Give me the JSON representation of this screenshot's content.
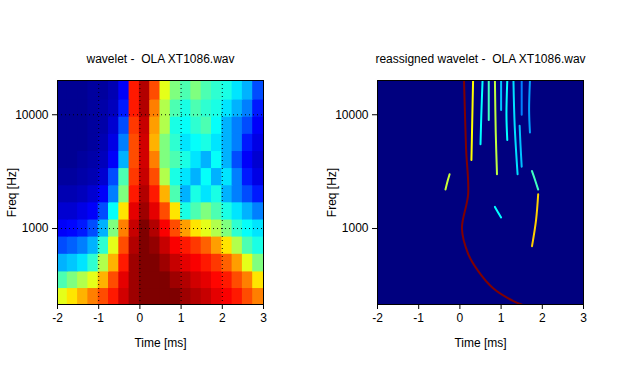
{
  "chart_data": [
    {
      "type": "heatmap",
      "title": "wavelet -  OLA XT1086.wav",
      "x_label": "Time [ms]",
      "y_label": "Freq [Hz]",
      "log": "y",
      "grid": true,
      "xlim": [
        -2,
        3
      ],
      "xticks": [
        -2,
        -1,
        0,
        1,
        2,
        3
      ],
      "ylim": [
        215,
        20000
      ],
      "yticks": [
        1000,
        10000
      ],
      "zlim": [
        0,
        1
      ],
      "x_edges": [
        -2,
        -1.75,
        -1.5,
        -1.25,
        -1,
        -0.75,
        -0.5,
        -0.25,
        0,
        0.25,
        0.5,
        0.75,
        1,
        1.25,
        1.5,
        1.75,
        2,
        2.25,
        2.5,
        2.75,
        3
      ],
      "y_edges": [
        215,
        300,
        420,
        600,
        850,
        1200,
        1700,
        2400,
        3400,
        4800,
        6800,
        9600,
        13600,
        20000
      ],
      "cells": [
        [
          0.6,
          0.65,
          0.7,
          0.75,
          0.8,
          0.85,
          0.92,
          0.97,
          1,
          1,
          1,
          1,
          0.97,
          0.95,
          0.93,
          0.9,
          0.88,
          0.85,
          0.8,
          0.75
        ],
        [
          0.45,
          0.5,
          0.55,
          0.6,
          0.7,
          0.8,
          0.9,
          0.97,
          1,
          1,
          1,
          0.97,
          0.95,
          0.92,
          0.9,
          0.87,
          0.85,
          0.8,
          0.75,
          0.65
        ],
        [
          0.3,
          0.32,
          0.35,
          0.42,
          0.55,
          0.7,
          0.85,
          0.97,
          1,
          1,
          0.97,
          0.93,
          0.9,
          0.88,
          0.85,
          0.82,
          0.78,
          0.72,
          0.6,
          0.5
        ],
        [
          0.2,
          0.22,
          0.25,
          0.3,
          0.42,
          0.6,
          0.8,
          0.95,
          1,
          0.98,
          0.93,
          0.88,
          0.85,
          0.82,
          0.78,
          0.72,
          0.65,
          0.55,
          0.45,
          0.4
        ],
        [
          0.12,
          0.13,
          0.15,
          0.2,
          0.3,
          0.5,
          0.75,
          0.93,
          1,
          0.95,
          0.88,
          0.8,
          0.72,
          0.65,
          0.6,
          0.55,
          0.5,
          0.42,
          0.38,
          0.35
        ],
        [
          0.08,
          0.08,
          0.1,
          0.12,
          0.2,
          0.38,
          0.65,
          0.9,
          0.97,
          0.9,
          0.8,
          0.65,
          0.4,
          0.45,
          0.5,
          0.45,
          0.4,
          0.35,
          0.3,
          0.25
        ],
        [
          0.05,
          0.05,
          0.06,
          0.08,
          0.12,
          0.25,
          0.5,
          0.85,
          0.95,
          0.85,
          0.7,
          0.45,
          0.3,
          0.4,
          0.35,
          0.4,
          0.3,
          0.25,
          0.2,
          0.15
        ],
        [
          0.03,
          0.03,
          0.04,
          0.05,
          0.08,
          0.2,
          0.45,
          0.82,
          0.93,
          0.8,
          0.55,
          0.4,
          0.35,
          0.3,
          0.38,
          0.3,
          0.35,
          0.25,
          0.15,
          0.1
        ],
        [
          0.02,
          0.02,
          0.03,
          0.04,
          0.06,
          0.12,
          0.3,
          0.8,
          0.92,
          0.75,
          0.5,
          0.45,
          0.4,
          0.35,
          0.3,
          0.38,
          0.3,
          0.2,
          0.12,
          0.08
        ],
        [
          0.02,
          0.02,
          0.02,
          0.03,
          0.05,
          0.1,
          0.25,
          0.8,
          0.92,
          0.7,
          0.5,
          0.42,
          0.35,
          0.38,
          0.4,
          0.35,
          0.3,
          0.25,
          0.15,
          0.1
        ],
        [
          0.02,
          0.02,
          0.02,
          0.03,
          0.04,
          0.08,
          0.2,
          0.82,
          0.93,
          0.72,
          0.55,
          0.4,
          0.38,
          0.42,
          0.45,
          0.38,
          0.3,
          0.25,
          0.2,
          0.12
        ],
        [
          0.02,
          0.02,
          0.02,
          0.03,
          0.04,
          0.06,
          0.15,
          0.85,
          0.95,
          0.75,
          0.55,
          0.45,
          0.4,
          0.45,
          0.42,
          0.4,
          0.35,
          0.3,
          0.25,
          0.15
        ],
        [
          0.02,
          0.02,
          0.02,
          0.03,
          0.03,
          0.05,
          0.12,
          0.85,
          0.95,
          0.8,
          0.6,
          0.5,
          0.45,
          0.5,
          0.45,
          0.42,
          0.4,
          0.35,
          0.3,
          0.2
        ]
      ]
    },
    {
      "type": "line",
      "title": "reassigned wavelet -  OLA XT1086.wav",
      "x_label": "Time [ms]",
      "y_label": "Freq [Hz]",
      "log": "y",
      "grid": false,
      "xlim": [
        -2,
        3
      ],
      "xticks": [
        -2,
        -1,
        0,
        1,
        2,
        3
      ],
      "ylim": [
        215,
        20000
      ],
      "yticks": [
        1000,
        10000
      ],
      "series": [
        {
          "color": "#800000",
          "x": [
            0.1,
            0.15,
            0.2,
            0.05,
            0.2,
            0.45,
            0.8,
            1.3,
            1.5
          ],
          "y": [
            20000,
            5000,
            2000,
            1000,
            600,
            420,
            300,
            230,
            215
          ]
        },
        {
          "color": "#c8ff37",
          "x": [
            -0.25,
            -0.3,
            -0.35
          ],
          "y": [
            3000,
            2600,
            2200
          ]
        },
        {
          "color": "#ffff00",
          "x": [
            0.32,
            0.3,
            0.28
          ],
          "y": [
            20000,
            9000,
            4000
          ]
        },
        {
          "color": "#00ffff",
          "x": [
            0.55,
            0.52,
            0.5
          ],
          "y": [
            20000,
            10000,
            5500
          ]
        },
        {
          "color": "#40ffbf",
          "x": [
            0.7,
            0.7
          ],
          "y": [
            20000,
            9000
          ]
        },
        {
          "color": "#bfff40",
          "x": [
            0.85,
            0.87,
            0.9
          ],
          "y": [
            20000,
            7000,
            3000
          ]
        },
        {
          "color": "#00c0ff",
          "x": [
            1.0,
            1.0
          ],
          "y": [
            20000,
            11000
          ]
        },
        {
          "color": "#00ffff",
          "x": [
            1.15,
            1.13,
            1.15
          ],
          "y": [
            20000,
            10000,
            6000
          ]
        },
        {
          "color": "#00e0ff",
          "x": [
            1.3,
            1.33,
            1.4
          ],
          "y": [
            20000,
            8000,
            3000
          ]
        },
        {
          "color": "#0080ff",
          "x": [
            1.5,
            1.5
          ],
          "y": [
            20000,
            10000
          ]
        },
        {
          "color": "#00a0ff",
          "x": [
            1.7,
            1.68,
            1.7
          ],
          "y": [
            20000,
            11000,
            7000
          ]
        },
        {
          "color": "#00ffff",
          "x": [
            0.85,
            0.92,
            1.0
          ],
          "y": [
            1550,
            1400,
            1250
          ]
        },
        {
          "color": "#00c0ff",
          "x": [
            1.45,
            1.47,
            1.5
          ],
          "y": [
            8000,
            5500,
            3500
          ]
        },
        {
          "color": "#40ffbf",
          "x": [
            1.75,
            1.82,
            1.9
          ],
          "y": [
            3200,
            2700,
            2200
          ]
        },
        {
          "color": "#ffd000",
          "x": [
            1.9,
            1.85,
            1.75
          ],
          "y": [
            2000,
            1200,
            700
          ]
        }
      ]
    }
  ]
}
